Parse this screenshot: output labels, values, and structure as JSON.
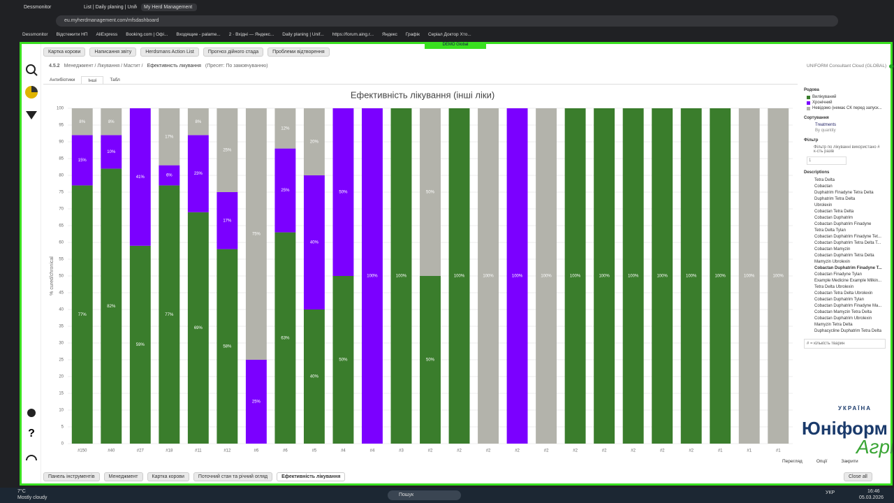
{
  "browser": {
    "tabs": [
      "Dessmonitor",
      "List | Daily planing | Unifo",
      "My Herd Management"
    ],
    "url": "eu.myherdmanagement.com/mfsdashboard",
    "bookmarks": [
      "Dessmonitor",
      "Відстежити НП",
      "AliExpress",
      "Booking.com | Офі...",
      "Входящие - palame...",
      "2 · Вхідні — Яндекс...",
      "Daily planing | Unif...",
      "https://forum.aing.r...",
      "Яндекс",
      "Графік",
      "Серіал Доктор Хто..."
    ]
  },
  "app": {
    "badge": "DEMO Global",
    "toolbar": [
      "Картка корови",
      "Написання звіту",
      "Herdsmans Action List",
      "Прогноз дійного стада",
      "Проблеми відтворення"
    ],
    "breadcrumb": {
      "code": "4.5.2",
      "path": "Менеджмент / Лікування / Мастит /",
      "page": "Ефективність лікування",
      "preset": "(Пресет: По замовчуванню)"
    },
    "account": "UNIFORM Consultant Cloud (GLOBAL)",
    "view_tabs": [
      "Антибіотики",
      "Інші",
      "Табл"
    ],
    "bottom_tabs": [
      "Панель інструментів",
      "Менеджмент",
      "Картка корови",
      "Поточний стан та річний огляд",
      "Ефективність лікування"
    ],
    "close_all": "Close all",
    "footer_buttons": [
      "Перегляд",
      "Опції",
      "Закрити"
    ]
  },
  "panel": {
    "legend_title": "Родова",
    "sort_title": "Сортування",
    "sort_options": [
      "Treatments",
      "By quantity"
    ],
    "filter_title": "Фільтр",
    "filter_option": "Фільтр по лікуванні використано # к-сть разів",
    "filter_value": "1",
    "descriptions_title": "Descriptions",
    "descriptions": [
      "Tetra Delta",
      "Cobactan",
      "Duphatrim Finadyne Tetra Delta",
      "Duphatrim Tetra Delta",
      "Ubrolexin",
      "Cobactan Tetra Delta",
      "Cobactan Duphatrim",
      "Cobactan Duphatrim Finadyne",
      "Tetra Delta Tylan",
      "Cobactan Duphatrim Finadyne Tet...",
      "Cobactan Duphatrim Tetra Delta T...",
      "Cobactan Mamyzin",
      "Cobactan Duphatrim Tetra Delta",
      "Mamyzin Ubrolexin",
      "Cobactan Duphatrim Finadyne T...",
      "Cobactan Finadyne Tylan",
      "Example Medicine Example Milkin...",
      "Tetra Delta Ubrolexin",
      "Cobactan Tetra Delta Ubrolexin",
      "Cobactan Duphatrim Tylan",
      "Cobactan Duphatrim Finadyne Ma...",
      "Cobactan Mamyzin Tetra Delta",
      "Cobactan Duphatrim Ubrolexin",
      "Mamyzin Tetra Delta",
      "Duphacycline Duphatrim Tetra Delta"
    ],
    "count_label": "# = кількість тварин"
  },
  "logo": {
    "top": "УКРАЇНА",
    "name": "Юніформ",
    "sub": "Агрі"
  },
  "taskbar": {
    "weather_temp": "7°C",
    "weather": "Mostly cloudy",
    "search": "Пошук",
    "lang": "УКР",
    "time": "16:46",
    "date": "05.03.2026"
  },
  "chart_data": {
    "type": "stacked-bar",
    "title": "Ефективність лікування (інші ліки)",
    "y_label": "% cured/chronical",
    "categories": [
      "#150",
      "#40",
      "#27",
      "#18",
      "#11",
      "#12",
      "#6",
      "#6",
      "#5",
      "#4",
      "#4",
      "#3",
      "#2",
      "#2",
      "#2",
      "#2",
      "#2",
      "#2",
      "#2",
      "#2",
      "#2",
      "#2",
      "#1",
      "#1",
      "#1"
    ],
    "series": [
      {
        "name": "Вилікуваний",
        "color": "#3a7d2c",
        "values": [
          77,
          82,
          59,
          77,
          69,
          58,
          0,
          63,
          40,
          50,
          0,
          100,
          50,
          100,
          0,
          0,
          0,
          100,
          100,
          100,
          100,
          100,
          100,
          0,
          0
        ],
        "value_labels": [
          "77%",
          "82%",
          "59%",
          "77%",
          "69%",
          "58%",
          null,
          "63%",
          "40%",
          "50%",
          null,
          "100%",
          "50%",
          "100%",
          null,
          null,
          null,
          "100%",
          "100%",
          "100%",
          "100%",
          "100%",
          "100%",
          null,
          null
        ]
      },
      {
        "name": "Хронічний",
        "color": "#7b00ff",
        "values": [
          15,
          10,
          41,
          6,
          23,
          17,
          25,
          25,
          40,
          50,
          100,
          0,
          0,
          0,
          0,
          100,
          0,
          0,
          0,
          0,
          0,
          0,
          0,
          0,
          0
        ],
        "value_labels": [
          "15%",
          "10%",
          "41%",
          "6%",
          "23%",
          "17%",
          "25%",
          "25%",
          "40%",
          "50%",
          "100%",
          null,
          null,
          null,
          null,
          "100%",
          null,
          null,
          null,
          null,
          null,
          null,
          null,
          null,
          null
        ]
      },
      {
        "name": "Невідомо (немає СК перед запуск...",
        "color": "#b3b3ab",
        "values": [
          8,
          8,
          0,
          17,
          8,
          25,
          75,
          12,
          20,
          0,
          0,
          0,
          50,
          0,
          100,
          0,
          100,
          0,
          0,
          0,
          0,
          0,
          0,
          100,
          100
        ],
        "value_labels": [
          "8%",
          "8%",
          null,
          "17%",
          "8%",
          "25%",
          "75%",
          "12%",
          "20%",
          null,
          null,
          null,
          "50%",
          null,
          "100%",
          null,
          "100%",
          null,
          null,
          null,
          null,
          null,
          null,
          "100%",
          "100%"
        ]
      }
    ],
    "ylim": [
      0,
      100
    ],
    "yticks": [
      0,
      5,
      10,
      15,
      20,
      25,
      30,
      35,
      40,
      45,
      50,
      55,
      60,
      65,
      70,
      75,
      80,
      85,
      90,
      95,
      100
    ],
    "grid": true
  }
}
